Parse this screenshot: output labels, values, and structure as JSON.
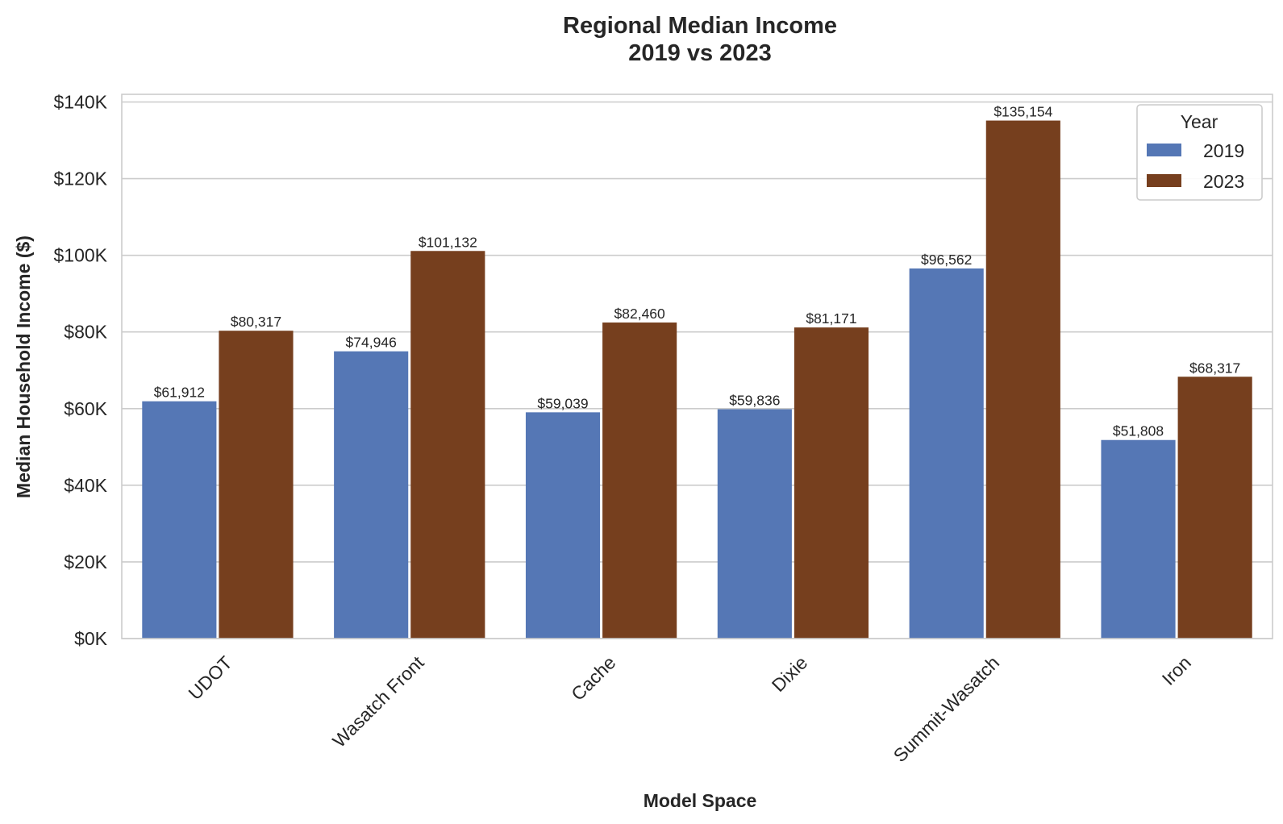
{
  "chart_data": {
    "type": "bar",
    "title_line1": "Regional Median Income",
    "title_line2": "2019 vs 2023",
    "xlabel": "Model Space",
    "ylabel": "Median Household Income ($)",
    "categories": [
      "UDOT",
      "Wasatch Front",
      "Cache",
      "Dixie",
      "Summit-Wasatch",
      "Iron"
    ],
    "series": [
      {
        "name": "2019",
        "color": "#5577b5",
        "values": [
          61912,
          74946,
          59039,
          59836,
          96562,
          51808
        ],
        "labels": [
          "$61,912",
          "$74,946",
          "$59,039",
          "$59,836",
          "$96,562",
          "$51,808"
        ]
      },
      {
        "name": "2023",
        "color": "#763f1e",
        "values": [
          80317,
          101132,
          82460,
          81171,
          135154,
          68317
        ],
        "labels": [
          "$80,317",
          "$101,132",
          "$82,460",
          "$81,171",
          "$135,154",
          "$68,317"
        ]
      }
    ],
    "ylim": [
      0,
      142000
    ],
    "yticks": [
      0,
      20000,
      40000,
      60000,
      80000,
      100000,
      120000,
      140000
    ],
    "ytick_labels": [
      "$0K",
      "$20K",
      "$40K",
      "$60K",
      "$80K",
      "$100K",
      "$120K",
      "$140K"
    ],
    "grid": "horizontal",
    "legend": {
      "title": "Year",
      "placement": "top-right"
    }
  }
}
